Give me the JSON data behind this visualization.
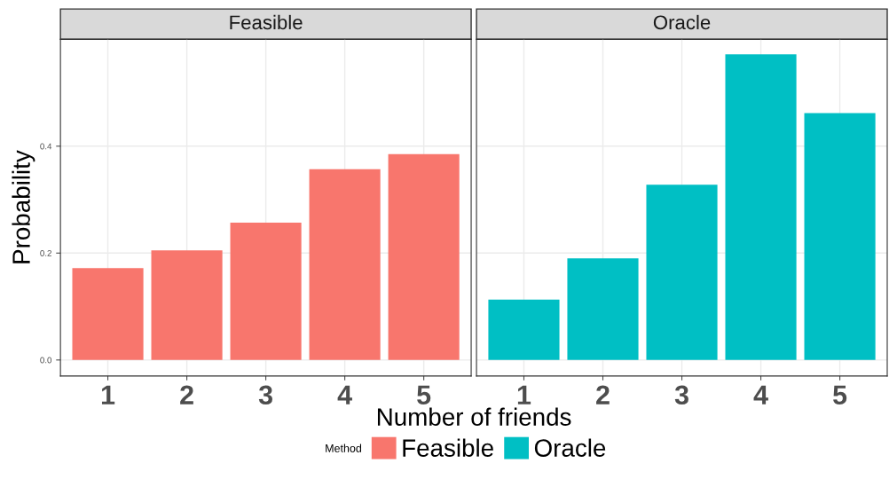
{
  "chart_data": [
    {
      "type": "bar",
      "title": "Feasible",
      "categories": [
        "1",
        "2",
        "3",
        "4",
        "5"
      ],
      "xlabel": "Number of friends",
      "ylabel": "Probability",
      "series": [
        {
          "name": "Feasible",
          "color": "#f8766d",
          "values": [
            0.172,
            0.205,
            0.257,
            0.357,
            0.385
          ]
        }
      ],
      "ylim": [
        -0.03,
        0.6
      ],
      "yticks": [
        {
          "value": 0,
          "label": "0.0"
        },
        {
          "value": 0.2,
          "label": "0.2"
        },
        {
          "value": 0.4,
          "label": "0.4"
        }
      ],
      "grid": true,
      "legend": "bottom",
      "legend_title": "Method"
    },
    {
      "type": "bar",
      "title": "Oracle",
      "categories": [
        "1",
        "2",
        "3",
        "4",
        "5"
      ],
      "series": [
        {
          "name": "Oracle",
          "color": "#00bfc4",
          "values": [
            0.113,
            0.19,
            0.328,
            0.572,
            0.462
          ]
        }
      ],
      "ylim": [
        -0.03,
        0.6
      ],
      "grid": true,
      "legend": "bottom",
      "tick_labels": "x"
    }
  ]
}
